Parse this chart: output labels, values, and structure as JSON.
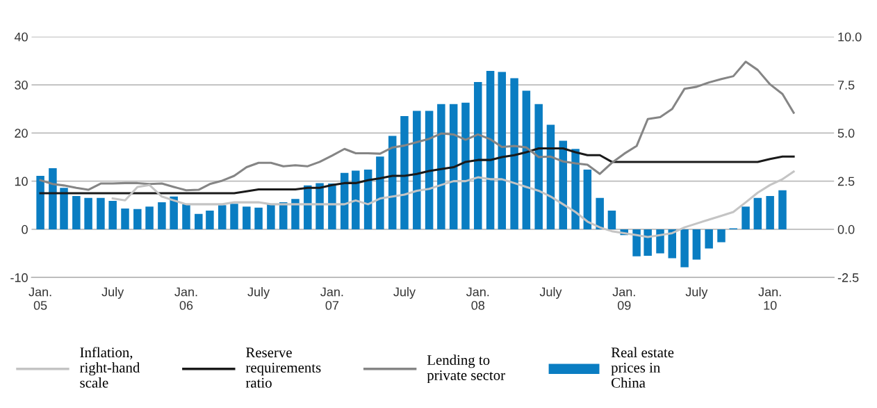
{
  "chart_data": {
    "type": "bar",
    "x": [
      "2005-01",
      "2005-02",
      "2005-03",
      "2005-04",
      "2005-05",
      "2005-06",
      "2005-07",
      "2005-08",
      "2005-09",
      "2005-10",
      "2005-11",
      "2005-12",
      "2006-01",
      "2006-02",
      "2006-03",
      "2006-04",
      "2006-05",
      "2006-06",
      "2006-07",
      "2006-08",
      "2006-09",
      "2006-10",
      "2006-11",
      "2006-12",
      "2007-01",
      "2007-02",
      "2007-03",
      "2007-04",
      "2007-05",
      "2007-06",
      "2007-07",
      "2007-08",
      "2007-09",
      "2007-10",
      "2007-11",
      "2007-12",
      "2008-01",
      "2008-02",
      "2008-03",
      "2008-04",
      "2008-05",
      "2008-06",
      "2008-07",
      "2008-08",
      "2008-09",
      "2008-10",
      "2008-11",
      "2008-12",
      "2009-01",
      "2009-02",
      "2009-03",
      "2009-04",
      "2009-05",
      "2009-06",
      "2009-07",
      "2009-08",
      "2009-09",
      "2009-10",
      "2009-11",
      "2009-12",
      "2010-01",
      "2010-02",
      "2010-03"
    ],
    "series": [
      {
        "name": "Inflation, right-hand scale",
        "type": "line",
        "axis": "y2",
        "color": "#c4c4c4",
        "values": [
          null,
          null,
          null,
          null,
          null,
          null,
          1.6,
          1.5,
          2.2,
          2.3,
          1.7,
          1.5,
          1.3,
          1.3,
          1.3,
          1.3,
          1.4,
          1.4,
          1.4,
          1.3,
          1.3,
          1.3,
          1.3,
          1.3,
          1.3,
          1.3,
          1.5,
          1.3,
          1.6,
          1.7,
          1.8,
          2.0,
          2.1,
          2.3,
          2.5,
          2.5,
          2.7,
          2.6,
          2.6,
          2.4,
          2.2,
          2.0,
          1.7,
          1.3,
          0.9,
          0.4,
          0.1,
          -0.1,
          -0.2,
          -0.3,
          -0.4,
          -0.3,
          -0.2,
          0.1,
          0.3,
          0.5,
          0.7,
          0.9,
          1.4,
          1.9,
          2.3,
          2.6,
          3.0
        ]
      },
      {
        "name": "Reserve requirements ratio",
        "type": "line",
        "color": "#1a1a1a",
        "values": [
          7.5,
          7.5,
          7.5,
          7.5,
          7.5,
          7.5,
          7.5,
          7.5,
          7.5,
          7.5,
          7.5,
          7.5,
          7.5,
          7.5,
          7.5,
          7.5,
          7.5,
          7.9,
          8.3,
          8.3,
          8.3,
          8.3,
          8.6,
          8.6,
          9.2,
          9.6,
          9.6,
          10.2,
          10.6,
          11.1,
          11.1,
          11.5,
          12.1,
          12.5,
          12.9,
          14.0,
          14.4,
          14.4,
          15.0,
          15.4,
          16.0,
          16.8,
          16.8,
          16.8,
          16.0,
          15.4,
          15.4,
          14.0,
          14.0,
          14.0,
          14.0,
          14.0,
          14.0,
          14.0,
          14.0,
          14.0,
          14.0,
          14.0,
          14.0,
          14.0,
          14.6,
          15.1,
          15.1
        ]
      },
      {
        "name": "Lending to private sector",
        "type": "line",
        "color": "#858585",
        "values": [
          10.2,
          9.4,
          9.1,
          8.6,
          8.2,
          9.5,
          9.5,
          9.6,
          9.6,
          9.4,
          9.5,
          8.8,
          8.1,
          8.2,
          9.4,
          10.1,
          11.1,
          12.9,
          13.8,
          13.8,
          13.1,
          13.3,
          13.1,
          14.0,
          15.3,
          16.7,
          15.8,
          15.8,
          15.7,
          17.0,
          17.4,
          18.1,
          18.8,
          19.9,
          19.7,
          18.6,
          19.7,
          18.7,
          17.1,
          17.3,
          17.0,
          15.0,
          15.1,
          14.1,
          13.7,
          13.4,
          11.5,
          13.8,
          15.7,
          17.3,
          22.9,
          23.3,
          25.0,
          29.2,
          29.6,
          30.5,
          31.2,
          31.8,
          34.8,
          33.1,
          30.1,
          28.1,
          24.2
        ]
      },
      {
        "name": "Real estate prices in China",
        "color": "#0a7dc2",
        "values": [
          11.1,
          12.7,
          8.6,
          6.9,
          6.5,
          6.5,
          5.9,
          4.3,
          4.2,
          4.7,
          5.6,
          6.8,
          5.2,
          3.2,
          3.9,
          5.0,
          5.3,
          4.7,
          4.5,
          5.3,
          5.6,
          6.3,
          9.1,
          9.6,
          9.5,
          11.7,
          12.2,
          12.4,
          15.1,
          19.4,
          23.5,
          24.6,
          24.6,
          26.0,
          26.0,
          26.3,
          30.6,
          32.9,
          32.7,
          31.4,
          28.8,
          26.0,
          21.7,
          18.4,
          16.7,
          12.4,
          6.5,
          3.9,
          -1.2,
          -5.6,
          -5.5,
          -5.0,
          -6.0,
          -7.9,
          -6.3,
          -4.0,
          -2.7,
          0.2,
          4.7,
          6.5,
          6.9,
          8.1,
          null
        ]
      }
    ],
    "xlim": [
      "2004-12-10",
      "2010-06-10"
    ],
    "xticks": [
      {
        "value": "2005-01",
        "label": "Jan.\n05"
      },
      {
        "value": "2005-07",
        "label": "July"
      },
      {
        "value": "2006-01",
        "label": "Jan.\n06"
      },
      {
        "value": "2006-07",
        "label": "July"
      },
      {
        "value": "2007-01",
        "label": "Jan.\n07"
      },
      {
        "value": "2007-07",
        "label": "July"
      },
      {
        "value": "2008-01",
        "label": "Jan.\n08"
      },
      {
        "value": "2008-07",
        "label": "July"
      },
      {
        "value": "2009-01",
        "label": "Jan.\n09"
      },
      {
        "value": "2009-07",
        "label": "July"
      },
      {
        "value": "2010-01",
        "label": "Jan.\n10"
      }
    ],
    "ylim": [
      -10,
      40
    ],
    "yticks": [
      -10,
      0,
      10,
      20,
      30,
      40
    ],
    "y2lim": [
      -2.5,
      10
    ],
    "y2ticks": [
      {
        "value": -2.5,
        "label": "-2.5"
      },
      {
        "value": 0,
        "label": "0.0"
      },
      {
        "value": 2.5,
        "label": "2.5"
      },
      {
        "value": 5,
        "label": "5.0"
      },
      {
        "value": 7.5,
        "label": "7.5"
      },
      {
        "value": 10,
        "label": "10.0"
      }
    ],
    "grid": "y",
    "legend": "bottom"
  }
}
